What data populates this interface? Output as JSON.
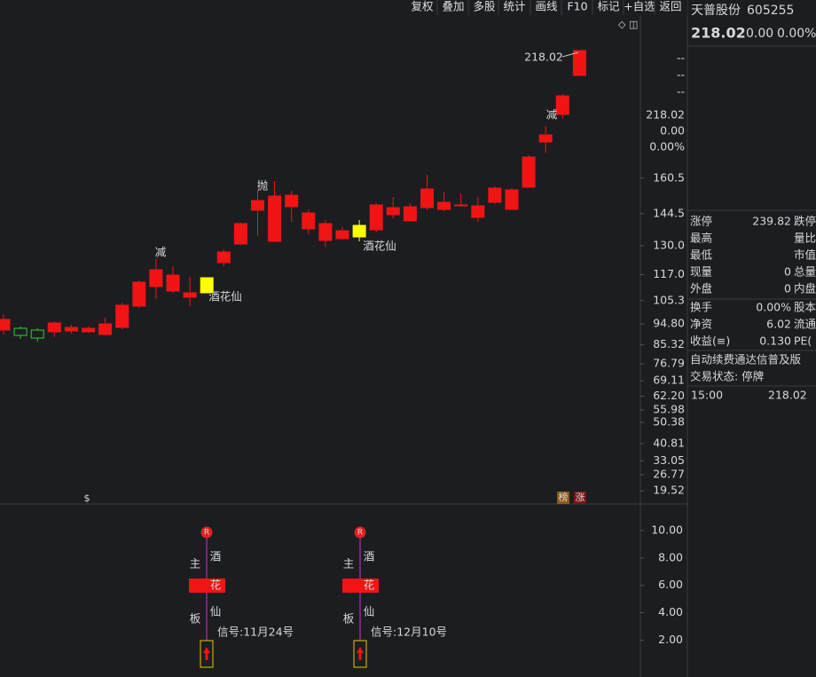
{
  "toolbar": [
    "复权",
    "叠加",
    "多股",
    "统计",
    "画线",
    "F10",
    "标记",
    "+自选",
    "返回"
  ],
  "chart_data": {
    "type": "candlestick",
    "open": [
      92,
      92.8,
      92,
      91.2,
      91.6,
      91.2,
      90,
      93.2,
      102.8,
      111.6,
      109.6,
      106.8,
      108.8,
      122.4,
      130.8,
      146,
      132,
      147.6,
      137.6,
      132.4,
      133.2,
      134,
      137.2,
      144,
      141.2,
      147.2,
      146.4,
      148,
      142.8,
      149.6,
      146.4,
      156.4,
      176.8,
      189.2,
      206.8
    ],
    "high": [
      99,
      93.6,
      92.8,
      96,
      94.4,
      93.6,
      97.6,
      104.4,
      114.4,
      124.4,
      120.8,
      116,
      115.6,
      128.4,
      140.4,
      154.8,
      159.2,
      154.8,
      146.4,
      141.6,
      138.4,
      141.6,
      149.2,
      152,
      149.2,
      162,
      154.4,
      153.6,
      152,
      156.8,
      156,
      170.8,
      184,
      198.4,
      218.02
    ],
    "low": [
      90,
      88,
      86.8,
      88.8,
      90.4,
      90.8,
      89.6,
      92.4,
      102,
      106,
      108.8,
      102.8,
      108.8,
      120.8,
      130.4,
      134.4,
      131.6,
      140.8,
      135.2,
      129.6,
      132.8,
      132,
      136,
      142.4,
      141.2,
      146,
      145.6,
      148,
      140.8,
      148.8,
      146.4,
      156.4,
      172,
      187.2,
      206.8
    ],
    "close": [
      96.8,
      89.6,
      88.4,
      95.2,
      93.2,
      92.8,
      94.8,
      103.2,
      113.6,
      119.2,
      116.8,
      108.8,
      115.6,
      127.2,
      140,
      150.4,
      152.4,
      152.8,
      144.8,
      140,
      136.8,
      139.2,
      148.4,
      147.2,
      147.6,
      155.6,
      149.6,
      148.4,
      148,
      156,
      155.2,
      170,
      180,
      197.6,
      218.02
    ],
    "colors": [
      "#f01414",
      "#33cc33",
      "#33cc33",
      "#f01414",
      "#f01414",
      "#f01414",
      "#f01414",
      "#f01414",
      "#f01414",
      "#f01414",
      "#f01414",
      "#f01414",
      "#ffff00",
      "#f01414",
      "#f01414",
      "#f01414",
      "#f01414",
      "#f01414",
      "#f01414",
      "#f01414",
      "#f01414",
      "#ffff00",
      "#f01414",
      "#f01414",
      "#f01414",
      "#f01414",
      "#f01414",
      "#f01414",
      "#f01414",
      "#f01414",
      "#f01414",
      "#f01414",
      "#f01414",
      "#f01414",
      "#f01414"
    ],
    "ylim": [
      13.6,
      233.6
    ],
    "yticks": [
      160.5,
      144.5,
      {
        "value": 130,
        "label": "130.0"
      },
      {
        "value": 117,
        "label": "117.0"
      },
      105.3,
      {
        "value": 94.8,
        "label": "94.80"
      },
      85.32,
      76.79,
      69.11,
      {
        "value": 62.2,
        "label": "62.20"
      },
      55.98,
      50.38,
      40.81,
      33.05,
      26.77,
      19.52
    ],
    "axis_labels": [
      "--",
      "--",
      "--",
      "218.02",
      "0.00",
      "0.00%"
    ],
    "price_label": "218.02",
    "annotations": [
      {
        "text": "减",
        "color": "#33dd33"
      },
      {
        "text": "抛",
        "color": "#33dd33"
      },
      {
        "text": "减",
        "color": "#33dd33"
      },
      {
        "text": "酒花仙",
        "color": "#ffff33"
      },
      {
        "text": "酒花仙",
        "color": "#ffff33"
      }
    ],
    "markers": [
      "$",
      "榜",
      "涨"
    ]
  },
  "indicator": {
    "ylim": [
      -0.7,
      11.95
    ],
    "yticks": [
      {
        "value": 10,
        "label": "10.00"
      },
      {
        "value": 8,
        "label": "8.00"
      },
      {
        "value": 6,
        "label": "6.00"
      },
      {
        "value": 4,
        "label": "4.00"
      },
      {
        "value": 2,
        "label": "2.00"
      }
    ],
    "signals": [
      {
        "badge": "R",
        "left_top": "主",
        "right_top": "酒",
        "box": "花",
        "right_bottom": "仙",
        "left_bottom": "板",
        "text": "信号:11月24号"
      },
      {
        "badge": "R",
        "left_top": "主",
        "right_top": "酒",
        "box": "花",
        "right_bottom": "仙",
        "left_bottom": "板",
        "text": "信号:12月10号"
      }
    ]
  },
  "info_panel": {
    "name": "天普股份",
    "code": "605255",
    "price": "218.02",
    "change": "0.00",
    "change_pct": "0.00%",
    "rows": [
      {
        "label": "涨停",
        "value": "239.82",
        "red": true,
        "right": "跌停"
      },
      {
        "label": "最高",
        "right": "量比"
      },
      {
        "label": "最低",
        "right": "市值"
      },
      {
        "label": "现量",
        "value": "0",
        "red": true,
        "right": "总量"
      },
      {
        "label": "外盘",
        "value": "0",
        "red": true,
        "right": "内盘"
      },
      {
        "label": "换手",
        "value": "0.00%",
        "right": "股本"
      },
      {
        "label": "净资",
        "value": "6.02",
        "right": "流通"
      },
      {
        "label": "收益(≡)",
        "value": "0.130",
        "right": "PE("
      }
    ],
    "banner": "自动续费通达信普及版",
    "status": "交易状态: 停牌",
    "time": "15:00",
    "last": "218.02"
  }
}
